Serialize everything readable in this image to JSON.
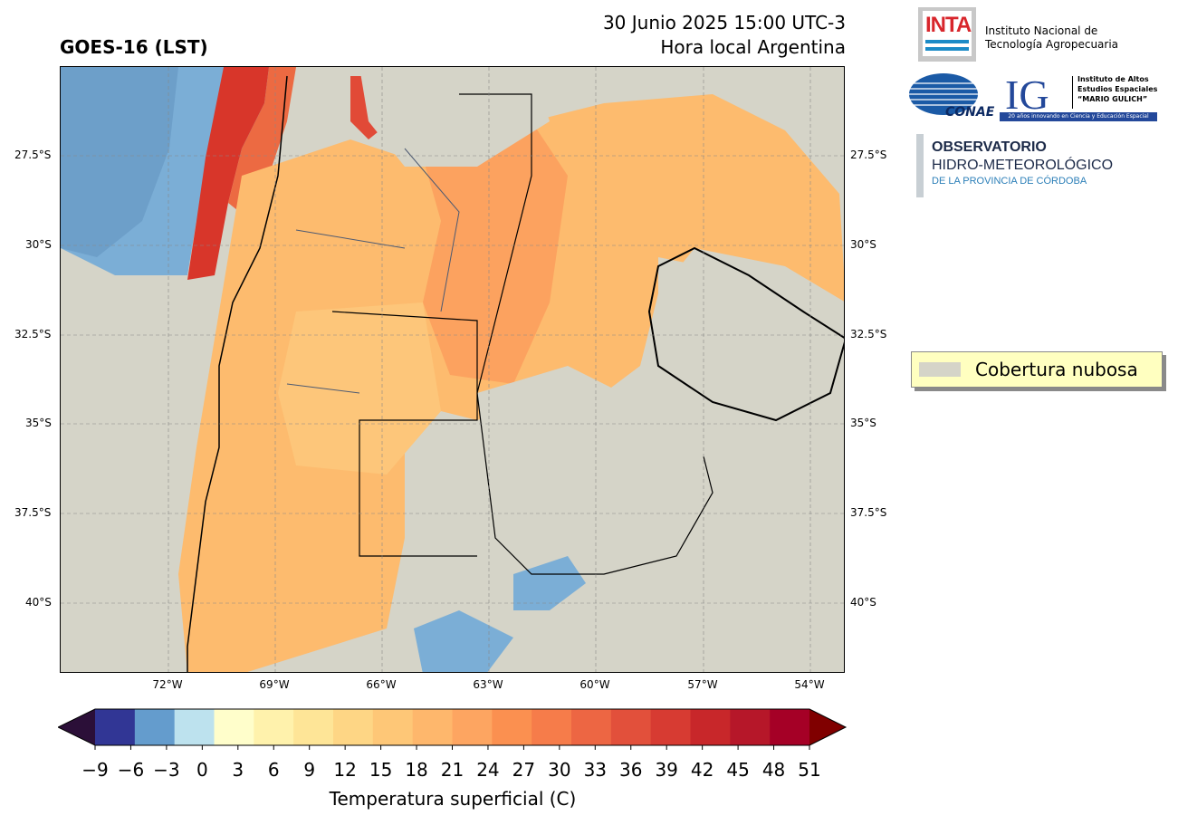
{
  "header": {
    "title": "GOES-16 (LST)",
    "date_line": "30 Junio 2025 15:00 UTC-3",
    "local_line": "Hora local Argentina"
  },
  "axes": {
    "lat_ticks": [
      "27.5°S",
      "30°S",
      "32.5°S",
      "35°S",
      "37.5°S",
      "40°S"
    ],
    "lon_ticks": [
      "72°W",
      "69°W",
      "66°W",
      "63°W",
      "60°W",
      "57°W",
      "54°W"
    ]
  },
  "legend": {
    "label": "Cobertura nubosa",
    "color": "#d5d4c8"
  },
  "colorbar": {
    "ticks": [
      "−9",
      "−6",
      "−3",
      "0",
      "3",
      "6",
      "9",
      "12",
      "15",
      "18",
      "21",
      "24",
      "27",
      "30",
      "33",
      "36",
      "39",
      "42",
      "45",
      "48",
      "51"
    ],
    "colors": [
      "#313695",
      "#649ccd",
      "#bde2ee",
      "#fffecb",
      "#fff2ac",
      "#fee597",
      "#fed685",
      "#fec777",
      "#feb76c",
      "#fda561",
      "#fb9050",
      "#f67c4a",
      "#ed6643",
      "#e2503b",
      "#d73b32",
      "#c8272a",
      "#b61729",
      "#a50026"
    ],
    "under_color": "#2b0f38",
    "over_color": "#800000",
    "label": "Temperatura superficial (C)"
  },
  "logos": {
    "inta_mark": "INTA",
    "inta_line1": "Instituto Nacional de",
    "inta_line2": "Tecnología Agropecuaria",
    "conae_mark": "CONAE",
    "ig_mark": "IG",
    "ig_line1": "Instituto de Altos",
    "ig_line2": "Estudios Espaciales",
    "ig_line3": "“MARIO GULICH”",
    "ig_banner": "20 años innovando en Ciencia y Educación Espacial",
    "obs_line1": "OBSERVATORIO",
    "obs_line2": "HIDRO-METEOROLÓGICO",
    "obs_line3": "DE LA PROVINCIA DE CÓRDOBA"
  }
}
